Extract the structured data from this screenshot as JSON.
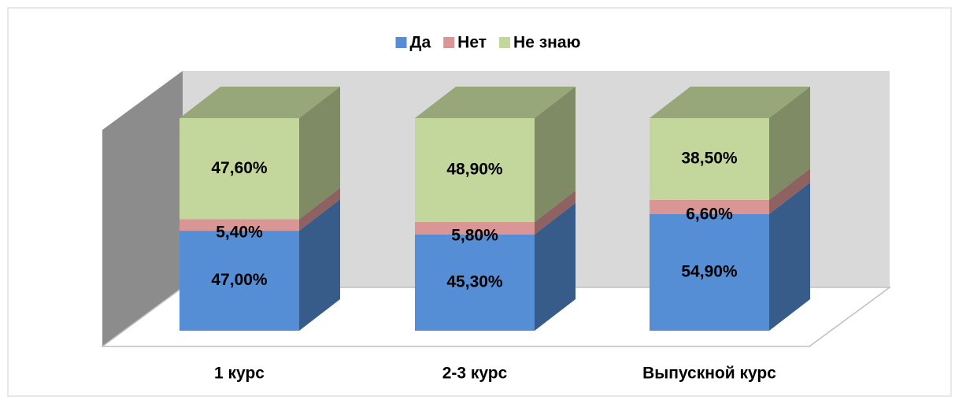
{
  "chart_data": {
    "type": "bar3d_stacked",
    "categories": [
      "1 курс",
      "2-3 курс",
      "Выпускной курс"
    ],
    "series": [
      {
        "name": "Да",
        "color": "#558ed5",
        "values": [
          47.0,
          45.3,
          54.9
        ],
        "value_labels": [
          "47,00%",
          "45,30%",
          "54,90%"
        ]
      },
      {
        "name": "Нет",
        "color": "#d99694",
        "values": [
          5.4,
          5.8,
          6.6
        ],
        "value_labels": [
          "5,40%",
          "5,80%",
          "6,60%"
        ]
      },
      {
        "name": "Не знаю",
        "color": "#c3d69b",
        "values": [
          47.6,
          48.9,
          38.5
        ],
        "value_labels": [
          "47,60%",
          "48,90%",
          "38,50%"
        ]
      }
    ],
    "legend": "top"
  }
}
